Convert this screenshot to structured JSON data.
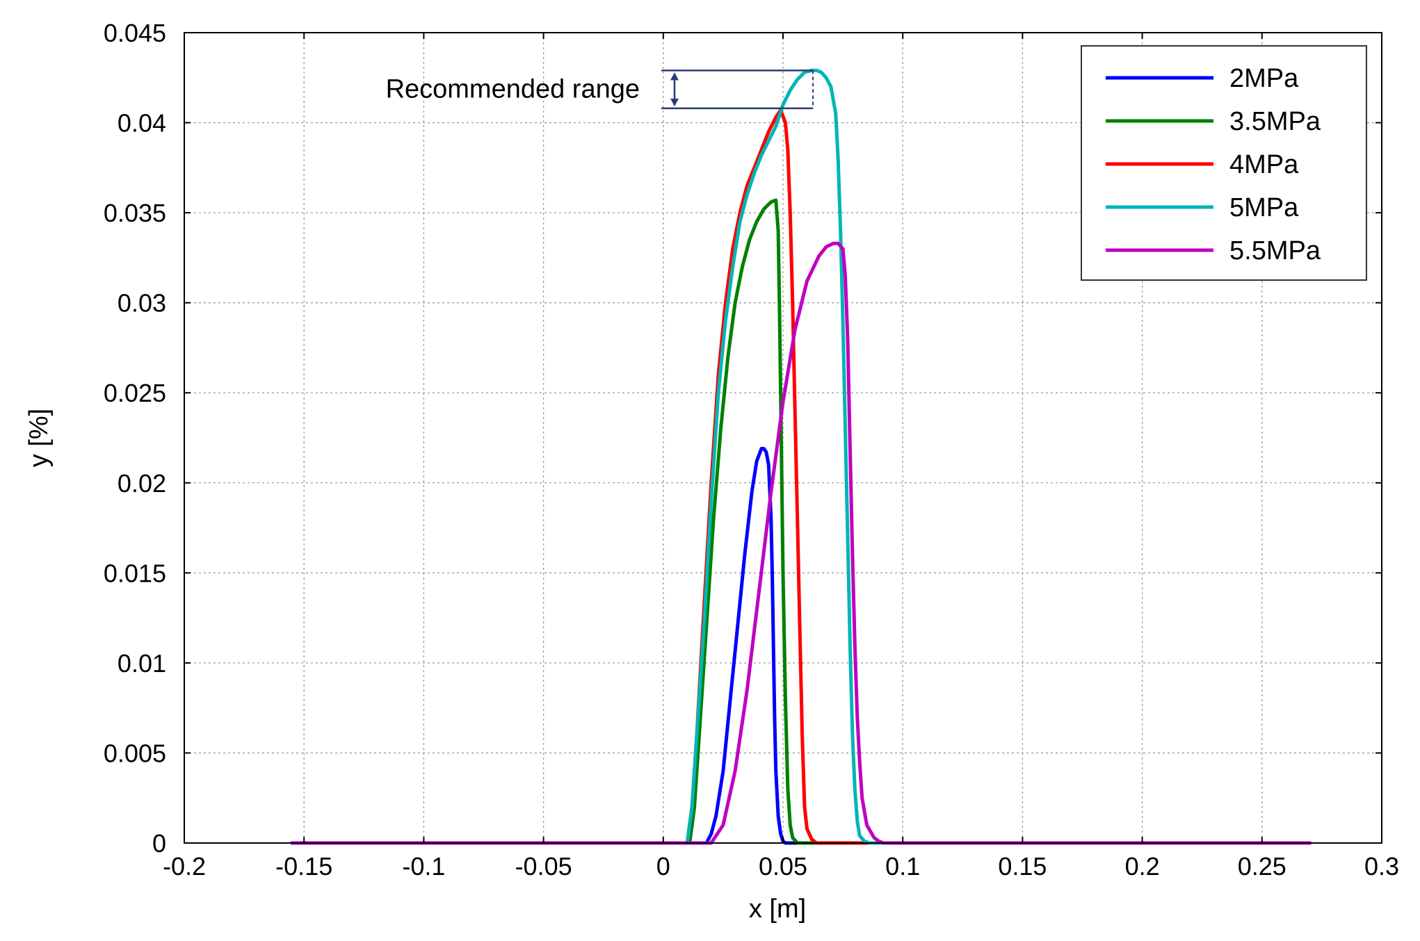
{
  "chart_data": {
    "type": "line",
    "title": "",
    "xlabel": "x [m]",
    "ylabel": "y [%]",
    "xlim": [
      -0.2,
      0.3
    ],
    "ylim": [
      0,
      0.045
    ],
    "xticks": [
      -0.2,
      -0.15,
      -0.1,
      -0.05,
      0,
      0.05,
      0.1,
      0.15,
      0.2,
      0.25,
      0.3
    ],
    "xtick_labels": [
      "-0.2",
      "-0.15",
      "-0.1",
      "-0.05",
      "0",
      "0.05",
      "0.1",
      "0.15",
      "0.2",
      "0.25",
      "0.3"
    ],
    "yticks": [
      0,
      0.005,
      0.01,
      0.015,
      0.02,
      0.025,
      0.03,
      0.035,
      0.04,
      0.045
    ],
    "ytick_labels": [
      "0",
      "0.005",
      "0.01",
      "0.015",
      "0.02",
      "0.025",
      "0.03",
      "0.035",
      "0.04",
      "0.045"
    ],
    "grid": true,
    "legend_position": "top-right",
    "annotation": {
      "text": "Recommended range",
      "x": 0.0625,
      "y_low": 0.0408,
      "y_high": 0.0429
    },
    "series": [
      {
        "name": "2MPa",
        "color": "#0000ff",
        "x": [
          -0.155,
          0.018,
          0.02,
          0.022,
          0.025,
          0.028,
          0.031,
          0.034,
          0.037,
          0.039,
          0.041,
          0.042,
          0.043,
          0.044,
          0.045,
          0.0455,
          0.046,
          0.0465,
          0.047,
          0.048,
          0.049,
          0.05,
          0.051,
          0.052,
          0.053,
          0.27
        ],
        "y": [
          0,
          0,
          0.0005,
          0.0015,
          0.004,
          0.008,
          0.012,
          0.016,
          0.0195,
          0.0212,
          0.0219,
          0.0219,
          0.0217,
          0.021,
          0.018,
          0.015,
          0.011,
          0.007,
          0.004,
          0.0015,
          0.0005,
          0.0001,
          0,
          0,
          0,
          0
        ]
      },
      {
        "name": "3.5MPa",
        "color": "#008000",
        "x": [
          -0.155,
          0.011,
          0.013,
          0.015,
          0.018,
          0.021,
          0.024,
          0.027,
          0.03,
          0.033,
          0.036,
          0.039,
          0.042,
          0.045,
          0.047,
          0.048,
          0.0485,
          0.049,
          0.0495,
          0.05,
          0.051,
          0.052,
          0.053,
          0.054,
          0.056,
          0.058,
          0.27
        ],
        "y": [
          0,
          0,
          0.002,
          0.006,
          0.012,
          0.018,
          0.023,
          0.027,
          0.03,
          0.032,
          0.0335,
          0.0345,
          0.0352,
          0.0356,
          0.0357,
          0.034,
          0.03,
          0.025,
          0.02,
          0.015,
          0.008,
          0.003,
          0.001,
          0.0003,
          0,
          0,
          0
        ]
      },
      {
        "name": "4MPa",
        "color": "#ff0000",
        "x": [
          -0.155,
          0.01,
          0.012,
          0.014,
          0.017,
          0.02,
          0.023,
          0.026,
          0.029,
          0.032,
          0.035,
          0.038,
          0.041,
          0.044,
          0.047,
          0.049,
          0.051,
          0.052,
          0.053,
          0.054,
          0.055,
          0.056,
          0.057,
          0.058,
          0.059,
          0.06,
          0.062,
          0.064,
          0.27
        ],
        "y": [
          0,
          0,
          0.002,
          0.006,
          0.013,
          0.02,
          0.026,
          0.03,
          0.033,
          0.035,
          0.0365,
          0.0375,
          0.0385,
          0.0395,
          0.0403,
          0.0407,
          0.04,
          0.0385,
          0.035,
          0.03,
          0.024,
          0.018,
          0.012,
          0.006,
          0.002,
          0.0008,
          0.0002,
          0,
          0
        ]
      },
      {
        "name": "5MPa",
        "color": "#00b5b5",
        "x": [
          -0.155,
          0.01,
          0.012,
          0.014,
          0.017,
          0.02,
          0.023,
          0.026,
          0.029,
          0.032,
          0.035,
          0.038,
          0.041,
          0.044,
          0.047,
          0.05,
          0.053,
          0.056,
          0.059,
          0.062,
          0.064,
          0.066,
          0.068,
          0.07,
          0.072,
          0.073,
          0.074,
          0.075,
          0.076,
          0.077,
          0.078,
          0.079,
          0.08,
          0.081,
          0.082,
          0.084,
          0.086,
          0.27
        ],
        "y": [
          0,
          0,
          0.002,
          0.006,
          0.012,
          0.019,
          0.025,
          0.029,
          0.032,
          0.0345,
          0.036,
          0.0372,
          0.0382,
          0.039,
          0.0398,
          0.041,
          0.0418,
          0.0424,
          0.0428,
          0.0429,
          0.0429,
          0.0428,
          0.0425,
          0.042,
          0.0405,
          0.038,
          0.034,
          0.029,
          0.023,
          0.017,
          0.011,
          0.006,
          0.003,
          0.0012,
          0.0004,
          0.0001,
          0,
          0
        ]
      },
      {
        "name": "5.5MPa",
        "color": "#c000c0",
        "x": [
          -0.155,
          0.02,
          0.025,
          0.03,
          0.035,
          0.04,
          0.045,
          0.05,
          0.055,
          0.06,
          0.065,
          0.068,
          0.071,
          0.073,
          0.075,
          0.076,
          0.077,
          0.078,
          0.079,
          0.08,
          0.081,
          0.082,
          0.083,
          0.085,
          0.088,
          0.09,
          0.092,
          0.27
        ],
        "y": [
          0,
          0,
          0.001,
          0.004,
          0.0085,
          0.014,
          0.0195,
          0.0245,
          0.0285,
          0.0312,
          0.0326,
          0.0331,
          0.0333,
          0.0333,
          0.033,
          0.0315,
          0.028,
          0.022,
          0.016,
          0.011,
          0.007,
          0.0045,
          0.0025,
          0.001,
          0.0003,
          0.0001,
          0,
          0
        ]
      }
    ]
  }
}
